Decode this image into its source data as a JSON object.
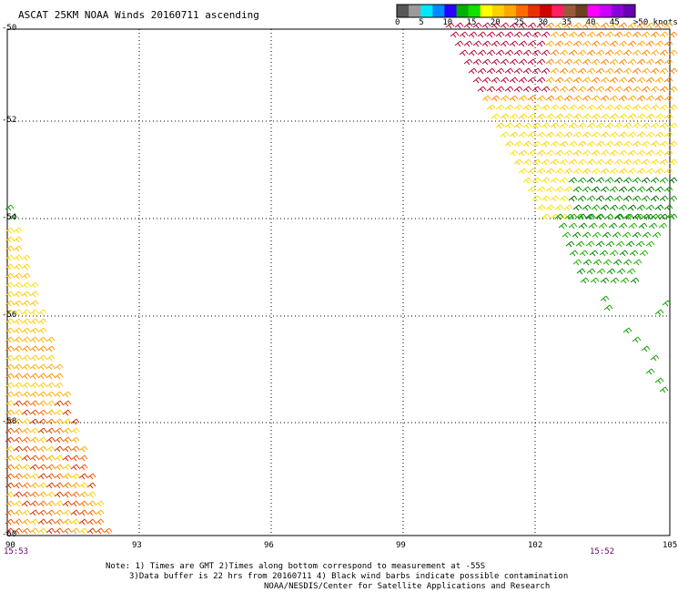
{
  "title": "ASCAT 25KM NOAA Winds 20160711 ascending",
  "scale": {
    "labels": [
      "0",
      "5",
      "10",
      "15",
      "20",
      "25",
      "30",
      "35",
      "40",
      "45",
      ">50 knots"
    ],
    "colors": [
      "#585858",
      "#9a9a9a",
      "#00e8ff",
      "#008cff",
      "#2a00ff",
      "#00b000",
      "#11e000",
      "#ffff00",
      "#ffd000",
      "#ffa800",
      "#ff6a00",
      "#e83000",
      "#d00000",
      "#ff2060",
      "#9a5a3a",
      "#6a4020",
      "#ff00ff",
      "#cc00ff",
      "#8a00d8",
      "#6a00b0"
    ]
  },
  "axes": {
    "lat_labels": [
      "-50",
      "-52",
      "-54",
      "-56",
      "-58",
      "-60"
    ],
    "lon_labels": [
      "90",
      "93",
      "96",
      "99",
      "102",
      "105"
    ]
  },
  "times": {
    "left": "15:53",
    "right": "15:52"
  },
  "notes": [
    "Note: 1) Times are GMT 2)Times along bottom correspond to measurement at -55S",
    "3)Data buffer is 22 hrs from 20160711 4) Black wind barbs indicate possible contamination",
    "NOAA/NESDIS/Center for Satellite Applications and Research"
  ]
}
